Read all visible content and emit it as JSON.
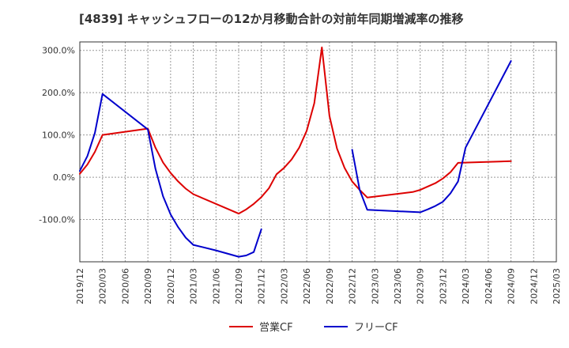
{
  "chart_data": {
    "type": "line",
    "title": "[4839]  キャッシュフローの12か月移動合計の対前年同期増減率の推移",
    "xlabel": "",
    "ylabel": "",
    "ylim": [
      -200,
      320
    ],
    "y_ticks": [
      300,
      200,
      100,
      0,
      -100
    ],
    "y_tick_labels": [
      "300.0%",
      "200.0%",
      "100.0%",
      "0.0%",
      "-100.0%"
    ],
    "x_range": [
      "2019-12",
      "2025-03"
    ],
    "x_ticks": [
      "2019/12",
      "2020/03",
      "2020/06",
      "2020/09",
      "2020/12",
      "2021/03",
      "2021/06",
      "2021/09",
      "2021/12",
      "2022/03",
      "2022/06",
      "2022/09",
      "2022/12",
      "2023/03",
      "2023/06",
      "2023/09",
      "2023/12",
      "2024/03",
      "2024/06",
      "2024/09",
      "2024/12",
      "2025/03"
    ],
    "grid": true,
    "legend_position": "bottom",
    "series": [
      {
        "name": "営業CF",
        "color": "#dd0000",
        "points": [
          {
            "x": "2019-12",
            "y": 8
          },
          {
            "x": "2020-01",
            "y": 30
          },
          {
            "x": "2020-02",
            "y": 60
          },
          {
            "x": "2020-03",
            "y": 100
          },
          {
            "x": "2020-09",
            "y": 115
          },
          {
            "x": "2020-10",
            "y": 70
          },
          {
            "x": "2020-11",
            "y": 35
          },
          {
            "x": "2020-12",
            "y": 10
          },
          {
            "x": "2021-01",
            "y": -10
          },
          {
            "x": "2021-02",
            "y": -27
          },
          {
            "x": "2021-03",
            "y": -40
          },
          {
            "x": "2021-09",
            "y": -86
          },
          {
            "x": "2021-10",
            "y": -76
          },
          {
            "x": "2021-11",
            "y": -63
          },
          {
            "x": "2021-12",
            "y": -47
          },
          {
            "x": "2022-01",
            "y": -26
          },
          {
            "x": "2022-02",
            "y": 7
          },
          {
            "x": "2022-03",
            "y": 22
          },
          {
            "x": "2022-04",
            "y": 42
          },
          {
            "x": "2022-05",
            "y": 70
          },
          {
            "x": "2022-06",
            "y": 110
          },
          {
            "x": "2022-07",
            "y": 175
          },
          {
            "x": "2022-08",
            "y": 307
          },
          {
            "x": "2022-09",
            "y": 145
          },
          {
            "x": "2022-10",
            "y": 68
          },
          {
            "x": "2022-11",
            "y": 22
          },
          {
            "x": "2022-12",
            "y": -10
          },
          {
            "x": "2023-01",
            "y": -30
          },
          {
            "x": "2023-02",
            "y": -48
          },
          {
            "x": "2023-08",
            "y": -35
          },
          {
            "x": "2023-09",
            "y": -30
          },
          {
            "x": "2023-10",
            "y": -22
          },
          {
            "x": "2023-11",
            "y": -14
          },
          {
            "x": "2023-12",
            "y": -3
          },
          {
            "x": "2024-01",
            "y": 12
          },
          {
            "x": "2024-02",
            "y": 34
          },
          {
            "x": "2024-09",
            "y": 38
          }
        ]
      },
      {
        "name": "フリーCF",
        "color": "#0000cc",
        "segments": [
          [
            {
              "x": "2019-12",
              "y": 15
            },
            {
              "x": "2020-01",
              "y": 50
            },
            {
              "x": "2020-02",
              "y": 105
            },
            {
              "x": "2020-03",
              "y": 197
            },
            {
              "x": "2020-09",
              "y": 113
            },
            {
              "x": "2020-10",
              "y": 20
            },
            {
              "x": "2020-11",
              "y": -45
            },
            {
              "x": "2020-12",
              "y": -88
            },
            {
              "x": "2021-01",
              "y": -118
            },
            {
              "x": "2021-02",
              "y": -143
            },
            {
              "x": "2021-03",
              "y": -160
            },
            {
              "x": "2021-06",
              "y": -173
            },
            {
              "x": "2021-09",
              "y": -188
            },
            {
              "x": "2021-10",
              "y": -185
            },
            {
              "x": "2021-11",
              "y": -177
            },
            {
              "x": "2021-12",
              "y": -123
            }
          ],
          [
            {
              "x": "2022-12",
              "y": 65
            },
            {
              "x": "2023-01",
              "y": -30
            },
            {
              "x": "2023-02",
              "y": -77
            },
            {
              "x": "2023-09",
              "y": -83
            },
            {
              "x": "2023-10",
              "y": -76
            },
            {
              "x": "2023-11",
              "y": -68
            },
            {
              "x": "2023-12",
              "y": -58
            },
            {
              "x": "2024-01",
              "y": -38
            },
            {
              "x": "2024-02",
              "y": -10
            },
            {
              "x": "2024-03",
              "y": 70
            },
            {
              "x": "2024-09",
              "y": 275
            }
          ]
        ]
      }
    ]
  }
}
